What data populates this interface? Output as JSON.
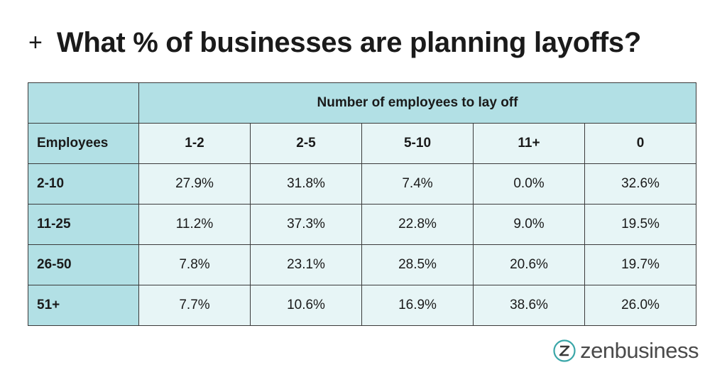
{
  "header": {
    "plus": "+",
    "title": "What % of businesses are planning layoffs?"
  },
  "logo": {
    "brand_a": "zen",
    "brand_b": "business",
    "icon": "zenbusiness-z-icon",
    "accent": "#3aa6a8"
  },
  "colors": {
    "header_fill": "#b2e0e5",
    "cell_fill": "#e7f5f6",
    "border": "#3a3a3a"
  },
  "chart_data": {
    "type": "table",
    "title": "What % of businesses are planning layoffs?",
    "column_group_label": "Number of employees to lay off",
    "row_header_label": "Employees",
    "columns": [
      "1-2",
      "2-5",
      "5-10",
      "11+",
      "0"
    ],
    "rows": [
      {
        "label": "2-10",
        "values": [
          "27.9%",
          "31.8%",
          "7.4%",
          "0.0%",
          "32.6%"
        ]
      },
      {
        "label": "11-25",
        "values": [
          "11.2%",
          "37.3%",
          "22.8%",
          "9.0%",
          "19.5%"
        ]
      },
      {
        "label": "26-50",
        "values": [
          "7.8%",
          "23.1%",
          "28.5%",
          "20.6%",
          "19.7%"
        ]
      },
      {
        "label": "51+",
        "values": [
          "7.7%",
          "10.6%",
          "16.9%",
          "38.6%",
          "26.0%"
        ]
      }
    ]
  }
}
